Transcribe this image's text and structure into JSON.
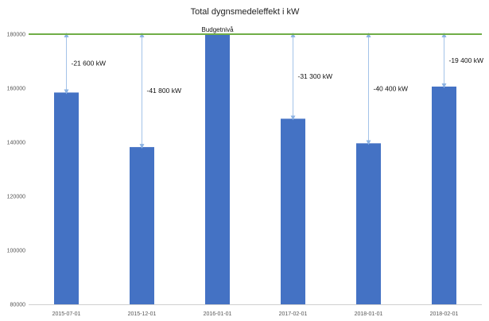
{
  "chart_data": {
    "type": "bar",
    "title": "Total dygnsmedeleffekt i kW",
    "categories": [
      "2015-07-01",
      "2015-12-01",
      "2016-01-01",
      "2017-02-01",
      "2018-01-01",
      "2018-02-01"
    ],
    "values": [
      158400,
      138200,
      180000,
      148700,
      139600,
      160600
    ],
    "ylim": [
      80000,
      180000
    ],
    "yticks": [
      "80000",
      "100000",
      "120000",
      "140000",
      "160000",
      "180000"
    ],
    "bar_color": "#4472C4",
    "budget": {
      "label": "Budgetnivå",
      "value": 180000,
      "color": "#70AD47"
    },
    "arrow_color": "#8EB4E3",
    "annotations": [
      "-21 600 kW",
      "-41 800 kW",
      "",
      "-31 300 kW",
      "-40 400 kW",
      "-19 400 kW"
    ],
    "grid": false,
    "legend": "none"
  }
}
